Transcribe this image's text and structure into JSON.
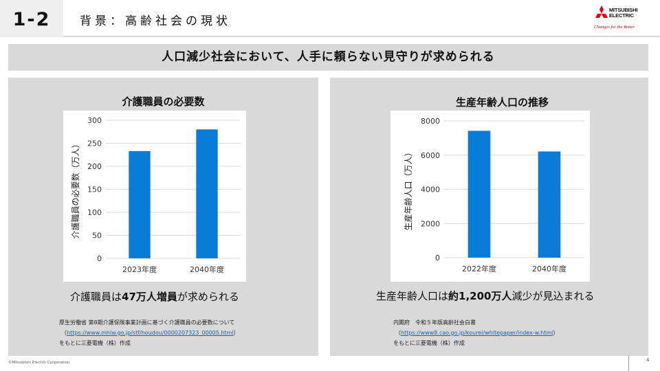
{
  "header": {
    "section_number": "1-2",
    "title": "背景：高齢社会の現状",
    "logo": {
      "line1": "MITSUBISHI",
      "line2": "ELECTRIC",
      "slogan": "Changes for the Better"
    }
  },
  "banner": {
    "text": "人口減少社会において、人手に頼らない見守りが求められる"
  },
  "colors": {
    "bar": "#0a7bd6",
    "panel": "#d9d9d9",
    "link": "#0563c1"
  },
  "left_panel": {
    "title": "介護職員の必要数",
    "summary_pre": "介護職員は",
    "summary_bold": "47万人増員",
    "summary_post": "が求められる",
    "source": {
      "line1": "厚生労働省 第8期介護保険事業計画に基づく介護職員の必要数について",
      "paren_open": "（",
      "url": "https://www.mhlw.go.jp/stf/houdou/0000207323_00005.html",
      "paren_close": "）",
      "line3": "をもとに三菱電機（株）作成"
    }
  },
  "right_panel": {
    "title": "生産年齢人口の推移",
    "summary_pre": "生産年齢人口は",
    "summary_bold": "約1,200万人",
    "summary_post": "減少が見込まれる",
    "source": {
      "line1": "内閣府　令和５年版高齢社会白書",
      "paren_open": "（",
      "url": "https://www8.cao.go.jp/kourei/whitepaper/index-w.html",
      "paren_close": "）",
      "line3": "をもとに三菱電機（株）作成"
    }
  },
  "chart_data": [
    {
      "type": "bar",
      "title": "介護職員の必要数",
      "categories": [
        "2023年度",
        "2040年度"
      ],
      "values": [
        233,
        280
      ],
      "ylabel": "介護職員の必要数（万人）",
      "ylim": [
        0,
        300
      ],
      "yticks": [
        0,
        50,
        100,
        150,
        200,
        250,
        300
      ],
      "grid": true
    },
    {
      "type": "bar",
      "title": "生産年齢人口の推移",
      "categories": [
        "2022年度",
        "2040年度"
      ],
      "values": [
        7421,
        6213
      ],
      "ylabel": "生産年齢人口（万人）",
      "ylim": [
        0,
        8000
      ],
      "yticks": [
        0,
        2000,
        4000,
        6000,
        8000
      ],
      "grid": true
    }
  ],
  "footer": {
    "copyright": "©Mitsubishi Electric Corporation",
    "page": "4"
  }
}
